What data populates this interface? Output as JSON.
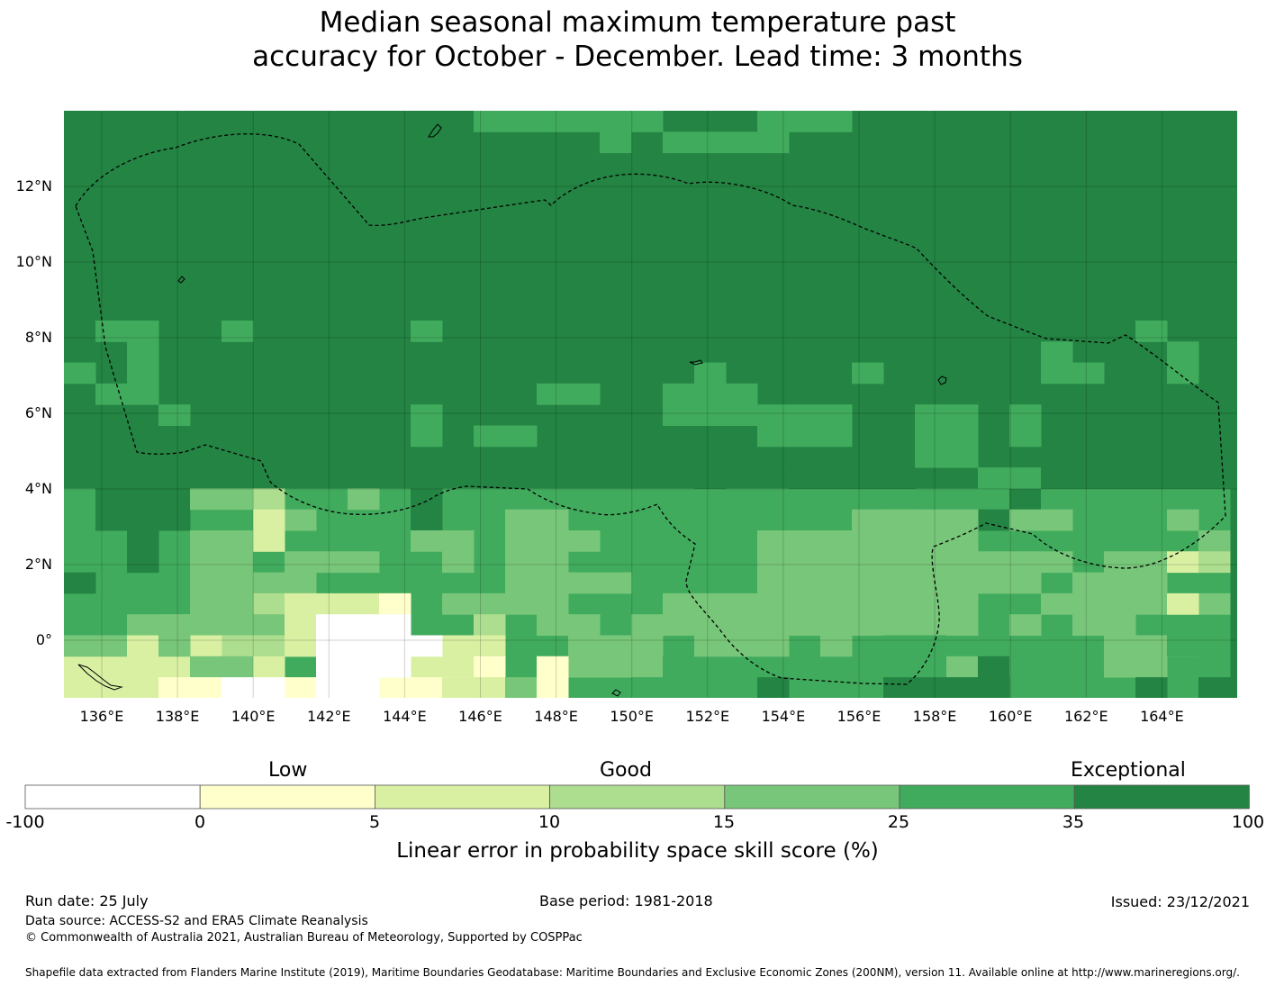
{
  "title_line1": "Median seasonal maximum temperature past",
  "title_line2": "accuracy for October - December. Lead time: 3 months",
  "map": {
    "lon_labels": [
      "136°E",
      "138°E",
      "140°E",
      "142°E",
      "144°E",
      "146°E",
      "148°E",
      "150°E",
      "152°E",
      "154°E",
      "156°E",
      "158°E",
      "160°E",
      "162°E",
      "164°E"
    ],
    "lat_labels": [
      "12°N",
      "10°N",
      "8°N",
      "6°N",
      "4°N",
      "2°N",
      "0°"
    ],
    "colors": {
      "exceptional_dark": "#238443",
      "good_high": "#41ab5d",
      "good_mid": "#78c679",
      "good_low": "#addd8e",
      "low_high": "#d9f0a3",
      "low_low": "#ffffcc",
      "negative": "#ffffff"
    }
  },
  "colorbar": {
    "categories": [
      "Low",
      "Good",
      "Exceptional"
    ],
    "ticks": [
      "-100",
      "0",
      "5",
      "10",
      "15",
      "25",
      "35",
      "100"
    ],
    "colors": [
      "#ffffff",
      "#ffffcc",
      "#d9f0a3",
      "#addd8e",
      "#78c679",
      "#41ab5d",
      "#238443"
    ],
    "label": "Linear error in probability space skill score (%)"
  },
  "footer": {
    "run_date": "Run date: 25 July",
    "base_period": "Base period: 1981-2018",
    "issued": "Issued: 23/12/2021",
    "data_source": "Data source: ACCESS-S2 and ERA5 Climate Reanalysis",
    "copyright": "© Commonwealth of Australia 2021, Australian Bureau of Meteorology, Supported by COSPPac",
    "shapefile": "Shapefile data extracted from Flanders Marine Institute (2019), Maritime Boundaries Geodatabase: Maritime Boundaries and Exclusive Economic Zones (200NM), version 11. Available online at http://www.marineregions.org/."
  }
}
